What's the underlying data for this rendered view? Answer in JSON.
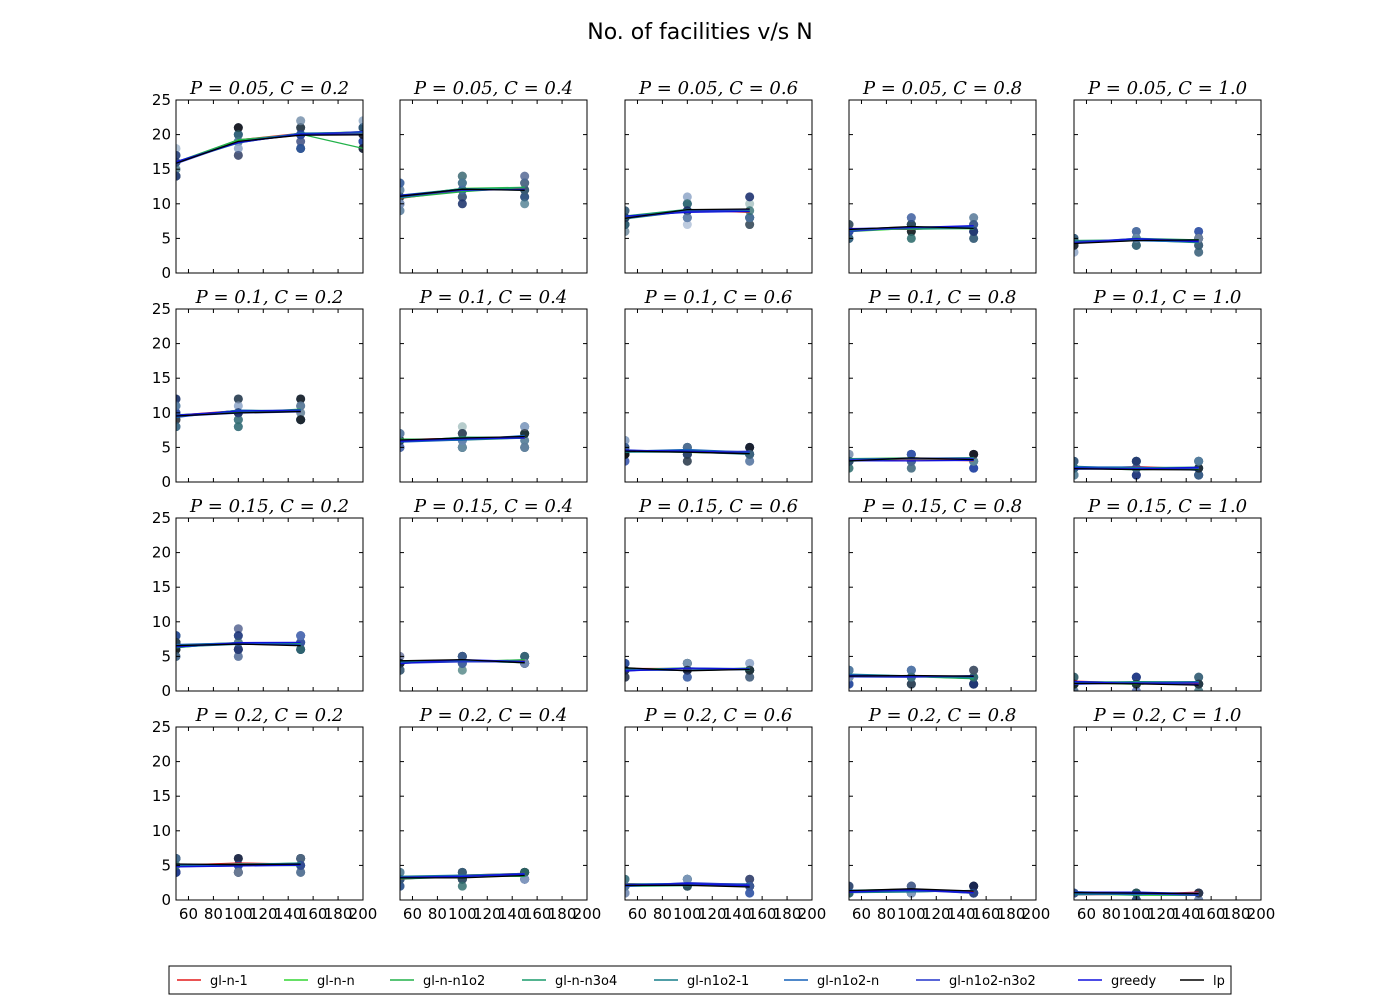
{
  "figure": {
    "title": "No. of facilities v/s N"
  },
  "chart_data": {
    "type": "line",
    "layout": "4x5 grid of subplots",
    "xlim": [
      50,
      200
    ],
    "ylim": [
      0,
      25
    ],
    "xticks": [
      60,
      80,
      100,
      120,
      140,
      160,
      180,
      200
    ],
    "yticks": [
      0,
      5,
      10,
      15,
      20,
      25
    ],
    "legend_position": "bottom-center",
    "series": [
      {
        "name": "gl-n-1",
        "color": "#e41a1c"
      },
      {
        "name": "gl-n-n",
        "color": "#33d633"
      },
      {
        "name": "gl-n-n1o2",
        "color": "#22b24a"
      },
      {
        "name": "gl-n-n3o4",
        "color": "#1a9c6b"
      },
      {
        "name": "gl-n1o2-1",
        "color": "#167e8a"
      },
      {
        "name": "gl-n1o2-n",
        "color": "#1561b8"
      },
      {
        "name": "gl-n1o2-n3o2",
        "color": "#2233cc"
      },
      {
        "name": "greedy",
        "color": "#1111dd"
      },
      {
        "name": "lp",
        "color": "#000000"
      }
    ],
    "panels": [
      {
        "title": "P = 0.05, C = 0.2",
        "x": [
          50,
          100,
          150,
          200
        ],
        "mean": [
          16,
          19,
          20,
          20.2
        ],
        "spread": 2.5
      },
      {
        "title": "P = 0.05, C = 0.4",
        "x": [
          50,
          100,
          150
        ],
        "mean": [
          11,
          12,
          12.2
        ],
        "spread": 2
      },
      {
        "title": "P = 0.05, C = 0.6",
        "x": [
          50,
          100,
          150
        ],
        "mean": [
          8,
          9,
          9
        ],
        "spread": 1.8
      },
      {
        "title": "P = 0.05, C = 0.8",
        "x": [
          50,
          100,
          150
        ],
        "mean": [
          6.2,
          6.5,
          6.6
        ],
        "spread": 1.3
      },
      {
        "title": "P = 0.05, C = 1.0",
        "x": [
          50,
          100,
          150
        ],
        "mean": [
          4.5,
          4.8,
          4.6
        ],
        "spread": 1.3
      },
      {
        "title": "P = 0.1, C = 0.2",
        "x": [
          50,
          100,
          150
        ],
        "mean": [
          9.5,
          10.2,
          10.3
        ],
        "spread": 2.2
      },
      {
        "title": "P = 0.1, C = 0.4",
        "x": [
          50,
          100,
          150
        ],
        "mean": [
          6,
          6.3,
          6.5
        ],
        "spread": 1.5
      },
      {
        "title": "P = 0.1, C = 0.6",
        "x": [
          50,
          100,
          150
        ],
        "mean": [
          4.5,
          4.5,
          4.2
        ],
        "spread": 1.2
      },
      {
        "title": "P = 0.1, C = 0.8",
        "x": [
          50,
          100,
          150
        ],
        "mean": [
          3.2,
          3.3,
          3.3
        ],
        "spread": 1
      },
      {
        "title": "P = 0.1, C = 1.0",
        "x": [
          50,
          100,
          150
        ],
        "mean": [
          2.1,
          2,
          1.9
        ],
        "spread": 1
      },
      {
        "title": "P = 0.15, C = 0.2",
        "x": [
          50,
          100,
          150
        ],
        "mean": [
          6.5,
          7,
          6.8
        ],
        "spread": 1.8
      },
      {
        "title": "P = 0.15, C = 0.4",
        "x": [
          50,
          100,
          150
        ],
        "mean": [
          4.2,
          4.3,
          4.3
        ],
        "spread": 1
      },
      {
        "title": "P = 0.15, C = 0.6",
        "x": [
          50,
          100,
          150
        ],
        "mean": [
          3.1,
          3.1,
          3.1
        ],
        "spread": 1
      },
      {
        "title": "P = 0.15, C = 0.8",
        "x": [
          50,
          100,
          150
        ],
        "mean": [
          2.2,
          2.1,
          2
        ],
        "spread": 1
      },
      {
        "title": "P = 0.15, C = 1.0",
        "x": [
          50,
          100,
          150
        ],
        "mean": [
          1.2,
          1.2,
          1.1
        ],
        "spread": 0.8
      },
      {
        "title": "P = 0.2, C = 0.2",
        "x": [
          50,
          100,
          150
        ],
        "mean": [
          5,
          5.1,
          5.2
        ],
        "spread": 1.2
      },
      {
        "title": "P = 0.2, C = 0.4",
        "x": [
          50,
          100,
          150
        ],
        "mean": [
          3.2,
          3.4,
          3.6
        ],
        "spread": 1.2
      },
      {
        "title": "P = 0.2, C = 0.6",
        "x": [
          50,
          100,
          150
        ],
        "mean": [
          2.2,
          2.3,
          2.1
        ],
        "spread": 0.9
      },
      {
        "title": "P = 0.2, C = 0.8",
        "x": [
          50,
          100,
          150
        ],
        "mean": [
          1.3,
          1.4,
          1.2
        ],
        "spread": 0.8
      },
      {
        "title": "P = 0.2, C = 1.0",
        "x": [
          50,
          100,
          150
        ],
        "mean": [
          1,
          0.9,
          0.9
        ],
        "spread": 0.6
      }
    ]
  }
}
